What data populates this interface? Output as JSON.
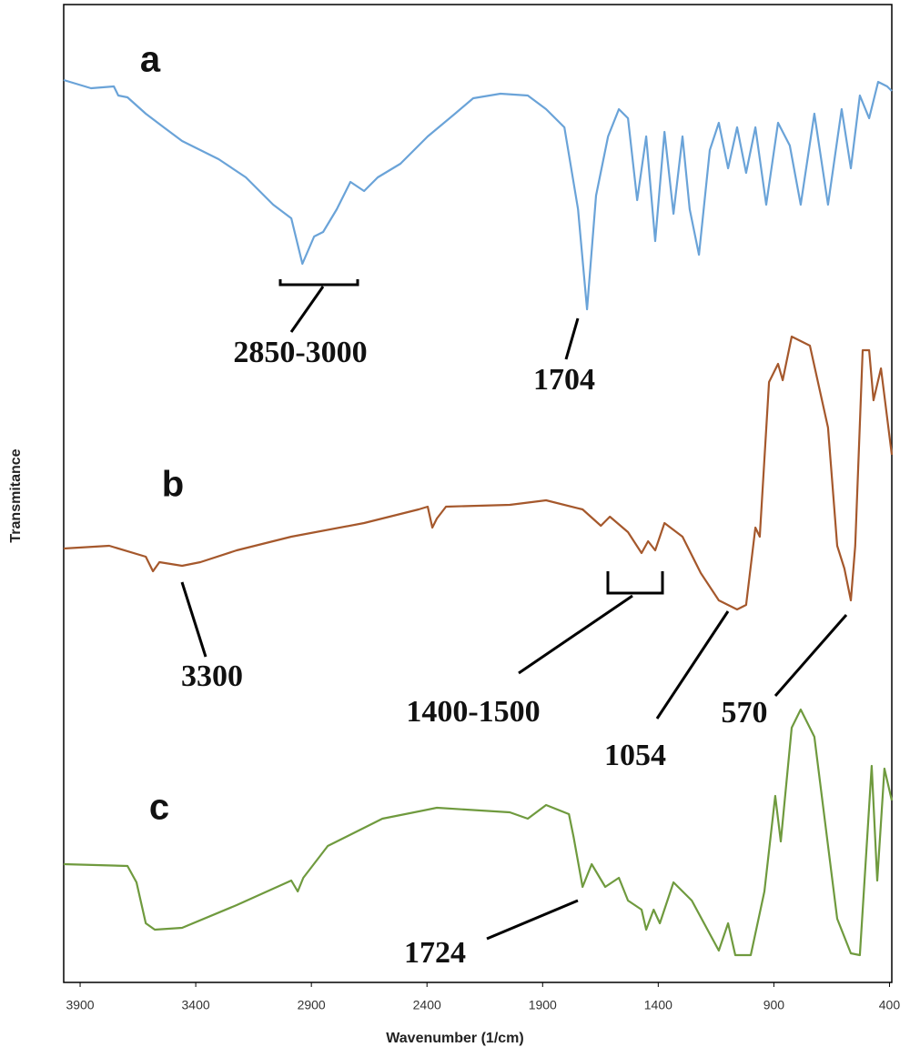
{
  "chart_data": {
    "type": "line",
    "x_label": "Wavenumber (1/cm)",
    "y_label": "Transmitance",
    "xlim": [
      3971,
      390
    ],
    "xticks": [
      3900,
      3400,
      2900,
      2400,
      1900,
      1400,
      900,
      400
    ],
    "ylim": [
      0,
      107.5
    ],
    "grid": false,
    "series": [
      {
        "name": "a",
        "color": "#6aa3d8",
        "x": [
          3971,
          3853,
          3754,
          3735,
          3695,
          3616,
          3538,
          3459,
          3301,
          3183,
          3065,
          2987,
          2939,
          2888,
          2849,
          2790,
          2731,
          2672,
          2613,
          2515,
          2397,
          2279,
          2200,
          2082,
          1964,
          1885,
          1806,
          1747,
          1708,
          1669,
          1617,
          1570,
          1531,
          1491,
          1452,
          1413,
          1373,
          1334,
          1295,
          1264,
          1224,
          1177,
          1138,
          1098,
          1059,
          1020,
          980,
          933,
          882,
          831,
          784,
          725,
          666,
          607,
          567,
          528,
          488,
          449,
          410,
          390
        ],
        "values": [
          99.2,
          98.3,
          98.5,
          97.5,
          97.3,
          95.5,
          94,
          92.5,
          90.5,
          88.5,
          85.5,
          84,
          79,
          82,
          82.5,
          85,
          88,
          87,
          88.5,
          90,
          93,
          95.5,
          97.2,
          97.7,
          97.5,
          96,
          94,
          85,
          74,
          86.5,
          93,
          96,
          95,
          86,
          93,
          81.5,
          93.5,
          84.5,
          93,
          85,
          80,
          91.5,
          94.5,
          89.5,
          94,
          89,
          94,
          85.5,
          94.5,
          92,
          85.5,
          95.5,
          85.5,
          96,
          89.5,
          97.5,
          95,
          99,
          98.5,
          98
        ]
      },
      {
        "name": "b",
        "color": "#a5582c",
        "x": [
          3971,
          3774,
          3616,
          3585,
          3557,
          3459,
          3380,
          3223,
          2987,
          2672,
          2436,
          2397,
          2377,
          2357,
          2318,
          2042,
          1885,
          1727,
          1648,
          1609,
          1531,
          1472,
          1444,
          1413,
          1373,
          1295,
          1216,
          1138,
          1059,
          1020,
          980,
          961,
          921,
          882,
          862,
          823,
          744,
          666,
          626,
          595,
          567,
          548,
          516,
          488,
          469,
          437,
          390
        ],
        "values": [
          47.7,
          48,
          46.8,
          45.2,
          46.2,
          45.8,
          46.2,
          47.5,
          49,
          50.5,
          52,
          52.3,
          50,
          51,
          52.3,
          52.5,
          53,
          52,
          50.2,
          51.2,
          49.5,
          47.2,
          48.5,
          47.5,
          50.5,
          49,
          45,
          42,
          41,
          41.5,
          50,
          49,
          66,
          68,
          66.2,
          71,
          70,
          61,
          48,
          45.5,
          42,
          48,
          69.5,
          69.5,
          64,
          67.5,
          58
        ]
      },
      {
        "name": "c",
        "color": "#6f9a3e",
        "x": [
          3971,
          3695,
          3656,
          3616,
          3577,
          3459,
          3223,
          2987,
          2959,
          2935,
          2829,
          2593,
          2357,
          2042,
          1964,
          1885,
          1786,
          1766,
          1727,
          1688,
          1629,
          1570,
          1531,
          1472,
          1452,
          1420,
          1393,
          1334,
          1255,
          1138,
          1098,
          1067,
          1000,
          941,
          894,
          870,
          823,
          784,
          725,
          626,
          567,
          528,
          477,
          453,
          422,
          390
        ],
        "values": [
          13,
          12.8,
          11,
          6.5,
          5.8,
          6,
          8.5,
          11.2,
          10,
          11.5,
          15,
          18,
          19.2,
          18.7,
          18,
          19.5,
          18.5,
          16,
          10.5,
          13,
          10.5,
          11.5,
          9,
          8,
          5.8,
          8,
          6.5,
          11,
          9,
          3.5,
          6.5,
          3,
          3,
          10,
          20.5,
          15.5,
          28,
          30,
          27,
          7,
          3.2,
          3,
          23.8,
          11.2,
          23.5,
          20
        ]
      }
    ],
    "annotations": [
      "2850-3000",
      "1704",
      "3300",
      "1400-1500",
      "1054",
      "570",
      "1724"
    ]
  }
}
